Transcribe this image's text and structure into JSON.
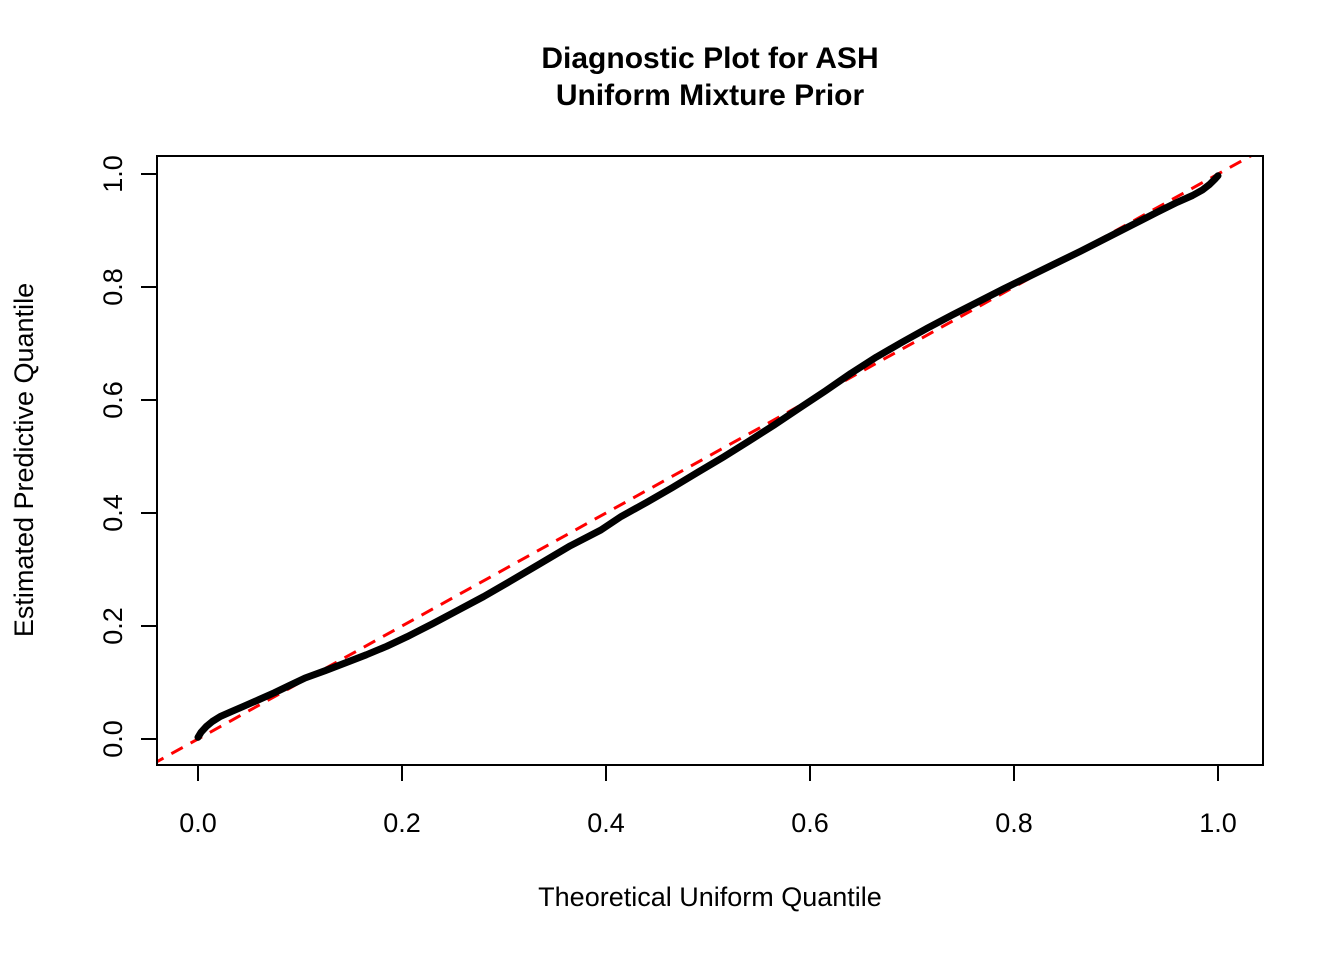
{
  "title": {
    "line1": "Diagnostic Plot for ASH",
    "line2": "Uniform Mixture Prior"
  },
  "chart_data": {
    "type": "scatter",
    "title": "Diagnostic Plot for ASH\nUniform Mixture Prior",
    "title_line1": "Diagnostic Plot for ASH",
    "title_line2": "Uniform Mixture Prior",
    "xlabel": "Theoretical Uniform Quantile",
    "ylabel": "Estimated Predictive Quantile",
    "xlim": [
      -0.04,
      1.04
    ],
    "ylim": [
      -0.04,
      1.04
    ],
    "grid": false,
    "legend": "none",
    "x_ticks": [
      "0.0",
      "0.2",
      "0.4",
      "0.6",
      "0.8",
      "1.0"
    ],
    "x_tick_values": [
      0.0,
      0.2,
      0.4,
      0.6,
      0.8,
      1.0
    ],
    "y_ticks": [
      "0.0",
      "0.2",
      "0.4",
      "0.6",
      "0.8",
      "1.0"
    ],
    "y_tick_values": [
      0.0,
      0.2,
      0.4,
      0.6,
      0.8,
      1.0
    ],
    "colors": {
      "points": "#000000",
      "reference_line": "#FF0000",
      "background": "#FFFFFF"
    },
    "series": [
      {
        "name": "estimated-vs-theoretical-quantiles",
        "type": "points-dense-curve",
        "color": "#000000",
        "x": [
          0.0,
          0.003,
          0.008,
          0.014,
          0.022,
          0.032,
          0.045,
          0.06,
          0.075,
          0.09,
          0.105,
          0.125,
          0.145,
          0.165,
          0.185,
          0.205,
          0.23,
          0.255,
          0.28,
          0.305,
          0.335,
          0.365,
          0.395,
          0.415,
          0.44,
          0.465,
          0.49,
          0.515,
          0.54,
          0.565,
          0.59,
          0.615,
          0.64,
          0.665,
          0.69,
          0.715,
          0.74,
          0.765,
          0.79,
          0.815,
          0.84,
          0.865,
          0.89,
          0.915,
          0.94,
          0.96,
          0.975,
          0.985,
          0.992,
          0.997,
          1.0
        ],
        "y": [
          0.003,
          0.012,
          0.022,
          0.031,
          0.04,
          0.048,
          0.058,
          0.07,
          0.082,
          0.095,
          0.108,
          0.121,
          0.135,
          0.149,
          0.164,
          0.181,
          0.204,
          0.228,
          0.252,
          0.278,
          0.31,
          0.342,
          0.37,
          0.394,
          0.419,
          0.445,
          0.472,
          0.499,
          0.527,
          0.556,
          0.586,
          0.616,
          0.647,
          0.676,
          0.702,
          0.727,
          0.751,
          0.774,
          0.797,
          0.819,
          0.841,
          0.863,
          0.886,
          0.909,
          0.932,
          0.95,
          0.962,
          0.972,
          0.982,
          0.991,
          0.997
        ]
      },
      {
        "name": "reference-line-y-equals-x",
        "type": "dashed-line",
        "color": "#FF0000",
        "x": [
          -0.045,
          1.045
        ],
        "y": [
          -0.045,
          1.045
        ]
      }
    ]
  }
}
